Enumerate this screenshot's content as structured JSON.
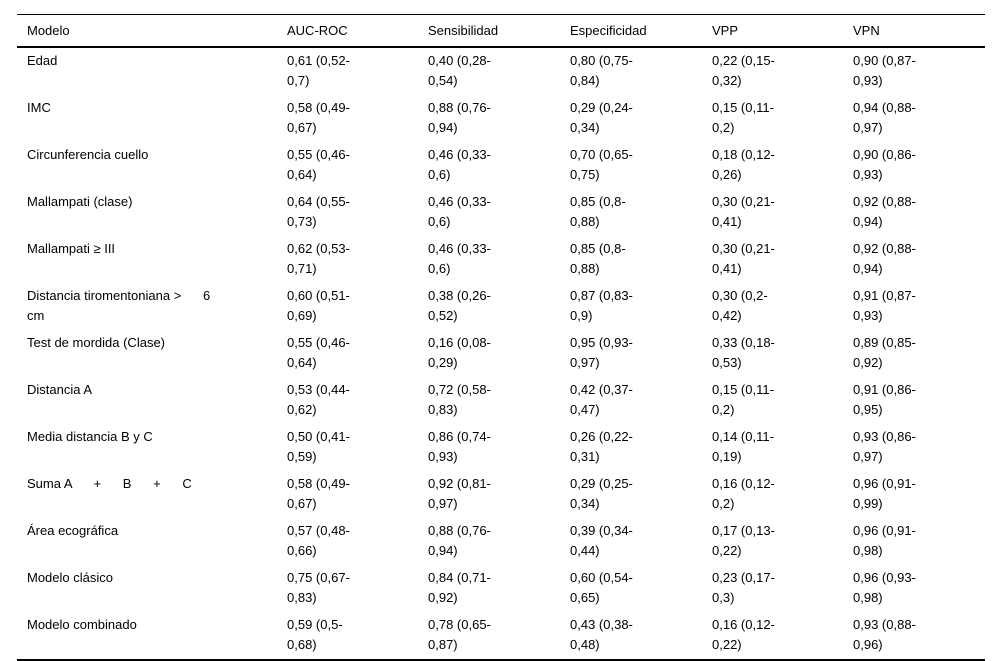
{
  "colors": {
    "background": "#ffffff",
    "text": "#000000",
    "rule": "#000000"
  },
  "table": {
    "columns": [
      "Modelo",
      "AUC-ROC",
      "Sensibilidad",
      "Especificidad",
      "VPP",
      "VPN"
    ],
    "rows": [
      {
        "label": "Edad",
        "values": [
          "0,61 (0,52-\n0,7)",
          "0,40 (0,28-\n0,54)",
          "0,80 (0,75-\n0,84)",
          "0,22 (0,15-\n0,32)",
          "0,90 (0,87-\n0,93)"
        ]
      },
      {
        "label": "IMC",
        "values": [
          "0,58 (0,49-\n0,67)",
          "0,88 (0,76-\n0,94)",
          "0,29 (0,24-\n0,34)",
          "0,15 (0,11-\n0,2)",
          "0,94 (0,88-\n0,97)"
        ]
      },
      {
        "label": "Circunferencia cuello",
        "values": [
          "0,55 (0,46-\n0,64)",
          "0,46 (0,33-\n0,6)",
          "0,70 (0,65-\n0,75)",
          "0,18 (0,12-\n0,26)",
          "0,90 (0,86-\n0,93)"
        ]
      },
      {
        "label": "Mallampati (clase)",
        "values": [
          "0,64 (0,55-\n0,73)",
          "0,46 (0,33-\n0,6)",
          "0,85 (0,8-\n0,88)",
          "0,30 (0,21-\n0,41)",
          "0,92 (0,88-\n0,94)"
        ]
      },
      {
        "label": "Mallampati ≥ III",
        "values": [
          "0,62 (0,53-\n0,71)",
          "0,46 (0,33-\n0,6)",
          "0,85 (0,8-\n0,88)",
          "0,30 (0,21-\n0,41)",
          "0,92 (0,88-\n0,94)"
        ]
      },
      {
        "label": "Distancia tiromentoniana >      6\ncm",
        "values": [
          "0,60 (0,51-\n0,69)",
          "0,38 (0,26-\n0,52)",
          "0,87 (0,83-\n0,9)",
          "0,30 (0,2-\n0,42)",
          "0,91 (0,87-\n0,93)"
        ]
      },
      {
        "label": "Test de mordida (Clase)",
        "values": [
          "0,55 (0,46-\n0,64)",
          "0,16 (0,08-\n0,29)",
          "0,95 (0,93-\n0,97)",
          "0,33 (0,18-\n0,53)",
          "0,89 (0,85-\n0,92)"
        ]
      },
      {
        "label": "Distancia A",
        "values": [
          "0,53 (0,44-\n0,62)",
          "0,72 (0,58-\n0,83)",
          "0,42 (0,37-\n0,47)",
          "0,15 (0,11-\n0,2)",
          "0,91 (0,86-\n0,95)"
        ]
      },
      {
        "label": "Media distancia B y C",
        "values": [
          "0,50 (0,41-\n0,59)",
          "0,86 (0,74-\n0,93)",
          "0,26 (0,22-\n0,31)",
          "0,14 (0,11-\n0,19)",
          "0,93 (0,86-\n0,97)"
        ]
      },
      {
        "label": "Suma A      +      B      +      C",
        "values": [
          "0,58 (0,49-\n0,67)",
          "0,92 (0,81-\n0,97)",
          "0,29 (0,25-\n0,34)",
          "0,16 (0,12-\n0,2)",
          "0,96 (0,91-\n0,99)"
        ]
      },
      {
        "label": "Área ecográfica",
        "values": [
          "0,57 (0,48-\n0,66)",
          "0,88 (0,76-\n0,94)",
          "0,39 (0,34-\n0,44)",
          "0,17 (0,13-\n0,22)",
          "0,96 (0,91-\n0,98)"
        ]
      },
      {
        "label": "Modelo clásico",
        "values": [
          "0,75 (0,67-\n0,83)",
          "0,84 (0,71-\n0,92)",
          "0,60 (0,54-\n0,65)",
          "0,23 (0,17-\n0,3)",
          "0,96 (0,93-\n0,98)"
        ]
      },
      {
        "label": "Modelo combinado",
        "values": [
          "0,59 (0,5-\n0,68)",
          "0,78 (0,65-\n0,87)",
          "0,43 (0,38-\n0,48)",
          "0,16 (0,12-\n0,22)",
          "0,93 (0,88-\n0,96)"
        ]
      }
    ]
  }
}
